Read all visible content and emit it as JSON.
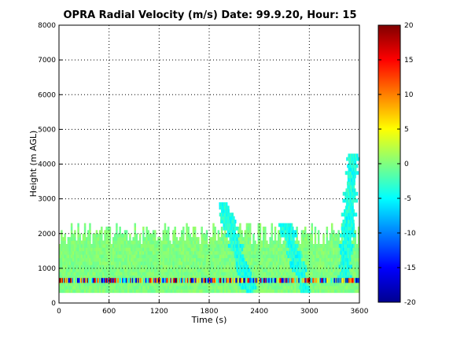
{
  "chart_data": {
    "type": "heatmap",
    "title": "OPRA Radial Velocity (m/s)  Date: 99.9.20, Hour: 15",
    "xlabel": "Time (s)",
    "ylabel": "Height (m AGL)",
    "xlim": [
      0,
      3600
    ],
    "ylim": [
      0,
      8000
    ],
    "x_ticks": [
      "0",
      "600",
      "1200",
      "1800",
      "2400",
      "3000",
      "3600"
    ],
    "y_ticks": [
      "0",
      "1000",
      "2000",
      "3000",
      "4000",
      "5000",
      "6000",
      "7000",
      "8000"
    ],
    "grid": true,
    "colorbar": {
      "range": [
        -20,
        20
      ],
      "ticks": [
        "20",
        "15",
        "10",
        "5",
        "0",
        "-5",
        "-10",
        "-15",
        "-20"
      ],
      "colormap": "jet"
    },
    "regions": [
      {
        "label": "background layer",
        "time": [
          0,
          3600
        ],
        "height": [
          300,
          2400
        ],
        "velocity_mps": 0
      },
      {
        "label": "noisy stripe",
        "time": [
          0,
          3600
        ],
        "height": [
          580,
          720
        ],
        "velocity_mps": "mixed -20..20"
      },
      {
        "label": "descending plume 1",
        "time": [
          1950,
          2280
        ],
        "height": [
          300,
          2900
        ],
        "velocity_mps": -4
      },
      {
        "label": "descending plume 2",
        "time": [
          2700,
          2950
        ],
        "height": [
          300,
          2300
        ],
        "velocity_mps": -4
      },
      {
        "label": "rising plume",
        "time": [
          3380,
          3560
        ],
        "height": [
          600,
          4300
        ],
        "velocity_mps": -4
      }
    ]
  }
}
